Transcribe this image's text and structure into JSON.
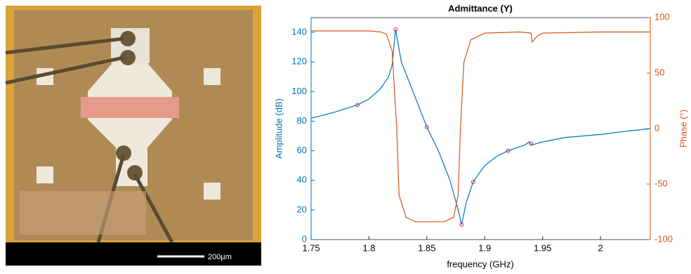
{
  "micrograph": {
    "scale_bar_label": "200µm"
  },
  "chart_data": {
    "type": "line",
    "title": "Admittance (Y)",
    "x_label": "frequency (GHz)",
    "y_label": "Amplitude (dB)",
    "y2_label": "Phase (°)",
    "xlim": [
      1.75,
      2.043
    ],
    "xticks": [
      1.75,
      1.8,
      1.85,
      1.9,
      1.95,
      2
    ],
    "ylim": [
      0,
      150
    ],
    "yticks": [
      0,
      20,
      40,
      60,
      80,
      100,
      120,
      140
    ],
    "y2lim": [
      -100,
      100
    ],
    "y2ticks": [
      -100,
      -50,
      0,
      50,
      100
    ],
    "series": [
      {
        "color": "#0072bd",
        "axis": "y",
        "x": [
          1.75,
          1.77,
          1.79,
          1.8,
          1.81,
          1.817,
          1.82,
          1.823,
          1.828,
          1.838,
          1.85,
          1.86,
          1.87,
          1.877,
          1.88,
          1.884,
          1.89,
          1.9,
          1.91,
          1.92,
          1.935,
          1.938,
          1.941,
          1.95,
          1.97,
          2.0,
          2.02,
          2.043
        ],
        "values": [
          82,
          86,
          91,
          95,
          102,
          110,
          118,
          142,
          120,
          100,
          76,
          60,
          40,
          20,
          10,
          25,
          39,
          50,
          56,
          60,
          64,
          66,
          64,
          66,
          69,
          71,
          73,
          75
        ]
      },
      {
        "color": "#d95319",
        "axis": "y2",
        "x": [
          1.75,
          1.8,
          1.81,
          1.815,
          1.82,
          1.824,
          1.826,
          1.832,
          1.84,
          1.865,
          1.873,
          1.877,
          1.879,
          1.882,
          1.888,
          1.9,
          1.93,
          1.94,
          1.941,
          1.945,
          1.95,
          2.0,
          2.043
        ],
        "values": [
          88,
          88,
          87,
          85,
          70,
          0,
          -60,
          -80,
          -84,
          -84,
          -80,
          -60,
          0,
          60,
          80,
          86,
          87,
          86,
          78,
          83,
          86,
          87,
          87
        ]
      }
    ],
    "markers": {
      "color": "#e0227a",
      "x": [
        1.79,
        1.823,
        1.85,
        1.88,
        1.89,
        1.92,
        1.94
      ],
      "values": [
        91,
        142,
        76,
        10,
        39,
        60,
        65
      ]
    }
  }
}
